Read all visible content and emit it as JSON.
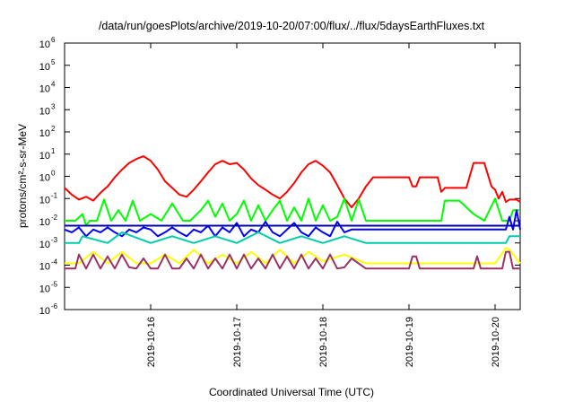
{
  "chart_data": {
    "type": "line",
    "title": "/data/run/goesPlots/archive/2019-10-20/07:00/flux/../flux/5daysEarthFluxes.txt",
    "xlabel": "Coordinated Universal Time (UTC)",
    "ylabel": "protons/cm²-s-sr-MeV",
    "yscale": "log",
    "xlim": [
      "2019-10-15T00:00",
      "2019-10-20T07:00"
    ],
    "ylim": [
      1e-06,
      1000000.0
    ],
    "grid": false,
    "legend": "none",
    "x_ticks": [
      "2019-10-16",
      "2019-10-17",
      "2019-10-18",
      "2019-10-19",
      "2019-10-20"
    ],
    "y_ticks": [
      {
        "base": "10",
        "exp": "-6"
      },
      {
        "base": "10",
        "exp": "-5"
      },
      {
        "base": "10",
        "exp": "-4"
      },
      {
        "base": "10",
        "exp": "-3"
      },
      {
        "base": "10",
        "exp": "-2"
      },
      {
        "base": "10",
        "exp": "-1"
      },
      {
        "base": "10",
        "exp": "0"
      },
      {
        "base": "10",
        "exp": "1"
      },
      {
        "base": "10",
        "exp": "2"
      },
      {
        "base": "10",
        "exp": "3"
      },
      {
        "base": "10",
        "exp": "4"
      },
      {
        "base": "10",
        "exp": "5"
      },
      {
        "base": "10",
        "exp": "6"
      }
    ],
    "series": [
      {
        "color": "#ff0000",
        "x": [
          "2019-10-15T00:00",
          "2019-10-15T02:00",
          "2019-10-15T04:00",
          "2019-10-15T06:00",
          "2019-10-15T08:00",
          "2019-10-15T10:00",
          "2019-10-15T12:00",
          "2019-10-15T14:00",
          "2019-10-15T16:00",
          "2019-10-15T18:00",
          "2019-10-15T20:00",
          "2019-10-15T22:00",
          "2019-10-16T00:00",
          "2019-10-16T02:00",
          "2019-10-16T04:00",
          "2019-10-16T06:00",
          "2019-10-16T08:00",
          "2019-10-16T10:00",
          "2019-10-16T12:00",
          "2019-10-16T14:00",
          "2019-10-16T16:00",
          "2019-10-16T18:00",
          "2019-10-16T20:00",
          "2019-10-16T22:00",
          "2019-10-17T00:00",
          "2019-10-17T02:00",
          "2019-10-17T04:00",
          "2019-10-17T06:00",
          "2019-10-17T08:00",
          "2019-10-17T10:00",
          "2019-10-17T12:00",
          "2019-10-17T14:00",
          "2019-10-17T16:00",
          "2019-10-17T18:00",
          "2019-10-17T20:00",
          "2019-10-17T22:00",
          "2019-10-18T00:00",
          "2019-10-18T02:00",
          "2019-10-18T04:00",
          "2019-10-18T06:00",
          "2019-10-18T08:00",
          "2019-10-18T10:00",
          "2019-10-18T12:00",
          "2019-10-18T14:00",
          "2019-10-18T16:00",
          "2019-10-18T18:00",
          "2019-10-18T20:00",
          "2019-10-18T22:00",
          "2019-10-19T00:00",
          "2019-10-19T01:00",
          "2019-10-19T02:00",
          "2019-10-19T03:00",
          "2019-10-19T04:00",
          "2019-10-19T06:00",
          "2019-10-19T08:00",
          "2019-10-19T09:00",
          "2019-10-19T10:00",
          "2019-10-19T12:00",
          "2019-10-19T14:00",
          "2019-10-19T16:00",
          "2019-10-19T18:00",
          "2019-10-19T19:00",
          "2019-10-19T21:00",
          "2019-10-19T23:00",
          "2019-10-20T00:00",
          "2019-10-20T01:00",
          "2019-10-20T02:00",
          "2019-10-20T03:00",
          "2019-10-20T04:00",
          "2019-10-20T05:00",
          "2019-10-20T06:00",
          "2019-10-20T07:00"
        ],
        "y": [
          0.3,
          0.15,
          0.09,
          0.12,
          0.08,
          0.18,
          0.35,
          0.9,
          2,
          4,
          6,
          8,
          5,
          2,
          0.6,
          0.3,
          0.15,
          0.12,
          0.25,
          0.6,
          1.5,
          3.5,
          5,
          3.5,
          4,
          2,
          0.8,
          0.4,
          0.25,
          0.15,
          0.1,
          0.2,
          0.5,
          1.5,
          3.5,
          5,
          3,
          1.5,
          0.4,
          0.1,
          0.04,
          0.1,
          0.35,
          0.9,
          0.9,
          0.9,
          0.9,
          0.9,
          0.9,
          0.35,
          0.35,
          0.9,
          0.9,
          0.9,
          0.9,
          0.2,
          0.3,
          0.3,
          0.3,
          0.3,
          4,
          4,
          4,
          0.35,
          0.25,
          0.1,
          0.2,
          0.07,
          0.09,
          0.09,
          0.09,
          0.07
        ]
      },
      {
        "color": "#00ff00",
        "x": [
          "2019-10-15T00:00",
          "2019-10-15T03:00",
          "2019-10-15T05:00",
          "2019-10-15T06:00",
          "2019-10-15T07:00",
          "2019-10-15T09:00",
          "2019-10-15T11:00",
          "2019-10-15T13:00",
          "2019-10-15T15:00",
          "2019-10-15T17:00",
          "2019-10-15T19:00",
          "2019-10-15T21:00",
          "2019-10-16T00:00",
          "2019-10-16T03:00",
          "2019-10-16T06:00",
          "2019-10-16T09:00",
          "2019-10-16T11:00",
          "2019-10-16T14:00",
          "2019-10-16T16:00",
          "2019-10-16T18:00",
          "2019-10-16T20:00",
          "2019-10-16T22:00",
          "2019-10-17T00:00",
          "2019-10-17T02:00",
          "2019-10-17T04:00",
          "2019-10-17T06:00",
          "2019-10-17T08:00",
          "2019-10-17T10:00",
          "2019-10-17T12:00",
          "2019-10-17T14:00",
          "2019-10-17T16:00",
          "2019-10-17T18:00",
          "2019-10-17T20:00",
          "2019-10-17T22:00",
          "2019-10-18T00:00",
          "2019-10-18T02:00",
          "2019-10-18T04:00",
          "2019-10-18T06:00",
          "2019-10-18T08:00",
          "2019-10-18T10:00",
          "2019-10-18T12:00",
          "2019-10-18T18:00",
          "2019-10-19T00:00",
          "2019-10-19T06:00",
          "2019-10-19T09:00",
          "2019-10-19T10:00",
          "2019-10-19T14:00",
          "2019-10-19T18:00",
          "2019-10-19T21:00",
          "2019-10-20T00:00",
          "2019-10-20T02:00",
          "2019-10-20T04:00",
          "2019-10-20T05:00",
          "2019-10-20T07:00"
        ],
        "y": [
          0.01,
          0.01,
          0.02,
          0.006,
          0.01,
          0.01,
          0.09,
          0.01,
          0.03,
          0.01,
          0.08,
          0.01,
          0.02,
          0.01,
          0.06,
          0.01,
          0.01,
          0.03,
          0.08,
          0.015,
          0.06,
          0.01,
          0.02,
          0.08,
          0.01,
          0.05,
          0.01,
          0.03,
          0.08,
          0.01,
          0.04,
          0.01,
          0.1,
          0.01,
          0.05,
          0.01,
          0.015,
          0.1,
          0.01,
          0.09,
          0.01,
          0.01,
          0.01,
          0.01,
          0.01,
          0.08,
          0.08,
          0.02,
          0.01,
          0.1,
          0.01,
          0.01,
          0.03,
          0.03
        ]
      },
      {
        "color": "#0000ff",
        "x": [
          "2019-10-15T00:00",
          "2019-10-15T02:00",
          "2019-10-15T04:00",
          "2019-10-15T06:00",
          "2019-10-15T08:00",
          "2019-10-15T10:00",
          "2019-10-15T12:00",
          "2019-10-15T14:00",
          "2019-10-15T16:00",
          "2019-10-15T18:00",
          "2019-10-15T20:00",
          "2019-10-15T22:00",
          "2019-10-16T00:00",
          "2019-10-16T02:00",
          "2019-10-16T04:00",
          "2019-10-16T06:00",
          "2019-10-16T08:00",
          "2019-10-16T10:00",
          "2019-10-16T12:00",
          "2019-10-16T14:00",
          "2019-10-16T16:00",
          "2019-10-16T18:00",
          "2019-10-16T20:00",
          "2019-10-16T22:00",
          "2019-10-17T00:00",
          "2019-10-17T02:00",
          "2019-10-17T04:00",
          "2019-10-17T06:00",
          "2019-10-17T08:00",
          "2019-10-17T10:00",
          "2019-10-17T12:00",
          "2019-10-17T14:00",
          "2019-10-17T16:00",
          "2019-10-17T18:00",
          "2019-10-17T20:00",
          "2019-10-17T22:00",
          "2019-10-18T00:00",
          "2019-10-18T02:00",
          "2019-10-18T04:00",
          "2019-10-18T06:00",
          "2019-10-18T08:00",
          "2019-10-18T12:00",
          "2019-10-18T18:00",
          "2019-10-19T00:00",
          "2019-10-19T06:00",
          "2019-10-19T12:00",
          "2019-10-19T18:00",
          "2019-10-20T00:00",
          "2019-10-20T03:00",
          "2019-10-20T04:00",
          "2019-10-20T05:00",
          "2019-10-20T06:00",
          "2019-10-20T07:00"
        ],
        "y": [
          0.004,
          0.003,
          0.005,
          0.002,
          0.004,
          0.003,
          0.005,
          0.003,
          0.002,
          0.004,
          0.003,
          0.005,
          0.004,
          0.002,
          0.003,
          0.005,
          0.003,
          0.002,
          0.004,
          0.003,
          0.006,
          0.002,
          0.005,
          0.003,
          0.008,
          0.002,
          0.004,
          0.003,
          0.009,
          0.003,
          0.002,
          0.004,
          0.008,
          0.003,
          0.002,
          0.005,
          0.003,
          0.002,
          0.009,
          0.003,
          0.004,
          0.004,
          0.004,
          0.004,
          0.004,
          0.004,
          0.004,
          0.004,
          0.004,
          0.015,
          0.004,
          0.03,
          0.004
        ]
      },
      {
        "color": "#0000aa",
        "x": [
          "2019-10-15T00:00",
          "2019-10-16T00:00",
          "2019-10-17T00:00",
          "2019-10-18T00:00",
          "2019-10-19T00:00",
          "2019-10-20T00:00",
          "2019-10-20T07:00"
        ],
        "y": [
          0.006,
          0.006,
          0.006,
          0.006,
          0.006,
          0.006,
          0.006
        ]
      },
      {
        "color": "#00ccaa",
        "x": [
          "2019-10-15T00:00",
          "2019-10-15T04:00",
          "2019-10-15T05:00",
          "2019-10-15T12:00",
          "2019-10-15T16:00",
          "2019-10-16T00:00",
          "2019-10-16T06:00",
          "2019-10-16T12:00",
          "2019-10-16T18:00",
          "2019-10-17T00:00",
          "2019-10-17T06:00",
          "2019-10-17T12:00",
          "2019-10-17T18:00",
          "2019-10-18T00:00",
          "2019-10-18T06:00",
          "2019-10-18T12:00",
          "2019-10-19T00:00",
          "2019-10-19T12:00",
          "2019-10-20T00:00",
          "2019-10-20T03:00",
          "2019-10-20T04:00",
          "2019-10-20T07:00"
        ],
        "y": [
          0.001,
          0.001,
          0.002,
          0.001,
          0.003,
          0.001,
          0.002,
          0.001,
          0.002,
          0.001,
          0.003,
          0.001,
          0.002,
          0.001,
          0.002,
          0.001,
          0.001,
          0.001,
          0.001,
          0.001,
          0.002,
          0.002
        ]
      },
      {
        "color": "#ffff00",
        "x": [
          "2019-10-15T00:00",
          "2019-10-15T04:00",
          "2019-10-15T08:00",
          "2019-10-15T12:00",
          "2019-10-15T16:00",
          "2019-10-15T20:00",
          "2019-10-16T00:00",
          "2019-10-16T04:00",
          "2019-10-16T08:00",
          "2019-10-16T12:00",
          "2019-10-16T16:00",
          "2019-10-16T20:00",
          "2019-10-17T00:00",
          "2019-10-17T04:00",
          "2019-10-17T08:00",
          "2019-10-17T12:00",
          "2019-10-17T16:00",
          "2019-10-17T20:00",
          "2019-10-18T00:00",
          "2019-10-18T06:00",
          "2019-10-18T12:00",
          "2019-10-19T00:00",
          "2019-10-19T12:00",
          "2019-10-20T00:00",
          "2019-10-20T03:00",
          "2019-10-20T04:00",
          "2019-10-20T07:00"
        ],
        "y": [
          0.00012,
          0.00012,
          0.0004,
          0.00012,
          0.0004,
          0.00012,
          0.00012,
          0.0003,
          0.00012,
          0.0005,
          0.00012,
          0.0003,
          0.00012,
          0.0004,
          0.00012,
          0.0005,
          0.00012,
          0.0004,
          0.00015,
          0.0003,
          0.00012,
          0.00012,
          0.00012,
          0.00012,
          0.0006,
          0.0005,
          0.00012
        ]
      },
      {
        "color": "#993366",
        "x": [
          "2019-10-15T00:00",
          "2019-10-15T03:00",
          "2019-10-15T04:00",
          "2019-10-15T06:00",
          "2019-10-15T08:00",
          "2019-10-15T10:00",
          "2019-10-15T12:00",
          "2019-10-15T14:00",
          "2019-10-15T16:00",
          "2019-10-15T18:00",
          "2019-10-15T20:00",
          "2019-10-15T22:00",
          "2019-10-16T00:00",
          "2019-10-16T02:00",
          "2019-10-16T04:00",
          "2019-10-16T06:00",
          "2019-10-16T08:00",
          "2019-10-16T10:00",
          "2019-10-16T12:00",
          "2019-10-16T14:00",
          "2019-10-16T16:00",
          "2019-10-16T18:00",
          "2019-10-16T20:00",
          "2019-10-16T22:00",
          "2019-10-17T00:00",
          "2019-10-17T02:00",
          "2019-10-17T04:00",
          "2019-10-17T06:00",
          "2019-10-17T08:00",
          "2019-10-17T10:00",
          "2019-10-17T12:00",
          "2019-10-17T14:00",
          "2019-10-17T16:00",
          "2019-10-17T18:00",
          "2019-10-17T20:00",
          "2019-10-17T22:00",
          "2019-10-18T00:00",
          "2019-10-18T02:00",
          "2019-10-18T04:00",
          "2019-10-18T06:00",
          "2019-10-18T08:00",
          "2019-10-18T12:00",
          "2019-10-18T18:00",
          "2019-10-19T00:00",
          "2019-10-19T01:00",
          "2019-10-19T02:00",
          "2019-10-19T03:00",
          "2019-10-19T06:00",
          "2019-10-19T12:00",
          "2019-10-19T18:00",
          "2019-10-19T19:00",
          "2019-10-19T20:00",
          "2019-10-20T00:00",
          "2019-10-20T02:00",
          "2019-10-20T03:00",
          "2019-10-20T04:00",
          "2019-10-20T05:00",
          "2019-10-20T07:00"
        ],
        "y": [
          7e-05,
          7e-05,
          0.0003,
          7e-05,
          0.0003,
          7e-05,
          0.00025,
          7e-05,
          0.0003,
          8e-05,
          7e-05,
          0.0002,
          7e-05,
          7e-05,
          0.0003,
          7e-05,
          7e-05,
          0.0002,
          7e-05,
          0.0003,
          7e-05,
          0.0002,
          7e-05,
          0.0003,
          7e-05,
          0.0003,
          7e-05,
          0.0002,
          7e-05,
          0.0003,
          7e-05,
          0.00025,
          7e-05,
          0.0003,
          7e-05,
          0.0002,
          7e-05,
          0.0003,
          7e-05,
          8e-05,
          0.0002,
          7e-05,
          7e-05,
          7e-05,
          0.00025,
          0.00025,
          7e-05,
          7e-05,
          7e-05,
          7e-05,
          0.00025,
          7e-05,
          7e-05,
          7e-05,
          0.0004,
          0.0004,
          7e-05,
          7e-05
        ]
      }
    ]
  }
}
